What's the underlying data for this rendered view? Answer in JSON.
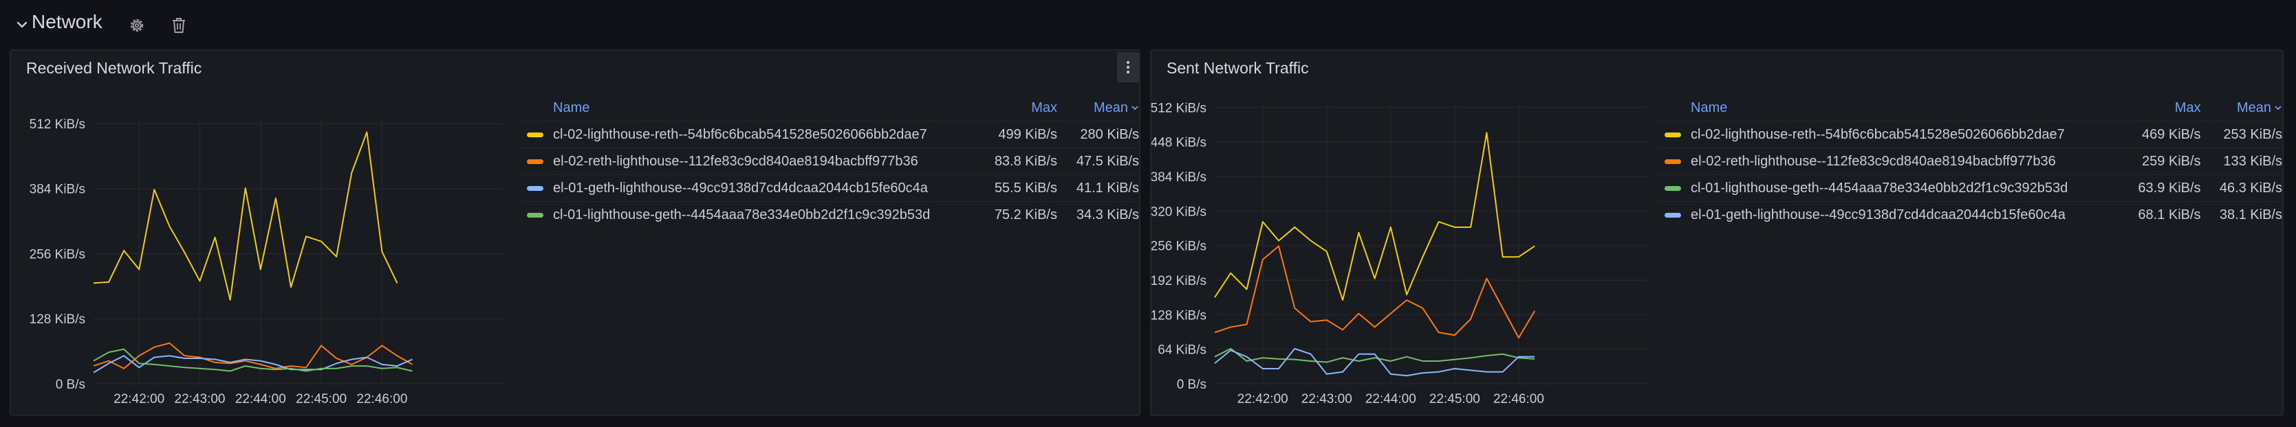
{
  "row": {
    "title": "Network"
  },
  "colors": {
    "yellow": "#f2cc0c",
    "orange": "#ff780a",
    "blue": "#8ab8ff",
    "green": "#73bf69",
    "grid": "#24262c",
    "axis_text": "#ccccdc"
  },
  "panels": [
    {
      "title": "Received Network Traffic",
      "legend": {
        "headers": {
          "name": "Name",
          "max": "Max",
          "mean": "Mean"
        },
        "rows": [
          {
            "name": "cl-02-lighthouse-reth--54bf6c6bcab541528e5026066bb2dae7",
            "max": "499 KiB/s",
            "mean": "280 KiB/s",
            "color": "#f2cc0c"
          },
          {
            "name": "el-02-reth-lighthouse--112fe83c9cd840ae8194bacbff977b36",
            "max": "83.8 KiB/s",
            "mean": "47.5 KiB/s",
            "color": "#ff780a"
          },
          {
            "name": "el-01-geth-lighthouse--49cc9138d7cd4dcaa2044cb15fe60c4a",
            "max": "55.5 KiB/s",
            "mean": "41.1 KiB/s",
            "color": "#8ab8ff"
          },
          {
            "name": "cl-01-lighthouse-geth--4454aaa78e334e0bb2d2f1c9c392b53d",
            "max": "75.2 KiB/s",
            "mean": "34.3 KiB/s",
            "color": "#73bf69"
          }
        ]
      },
      "chart_data": {
        "type": "line",
        "title": "Received Network Traffic",
        "xlabel": "",
        "ylabel": "",
        "x_ticks": [
          "22:42:00",
          "22:43:00",
          "22:44:00",
          "22:45:00",
          "22:46:00"
        ],
        "y_ticks": [
          "0 B/s",
          "128 KiB/s",
          "256 KiB/s",
          "384 KiB/s",
          "512 KiB/s"
        ],
        "y_tick_values": [
          0,
          128,
          256,
          384,
          512
        ],
        "ylim": [
          0,
          520
        ],
        "x": [
          0,
          15,
          30,
          45,
          60,
          75,
          90,
          105,
          120,
          135,
          150,
          165,
          180,
          195,
          210,
          225,
          240,
          255,
          270,
          285,
          300,
          315,
          330,
          345,
          360,
          375,
          390,
          405
        ],
        "xlim": [
          0,
          405
        ],
        "x_tick_values": [
          45,
          105,
          165,
          225,
          285
        ],
        "series": [
          {
            "name": "cl-02-lighthouse-reth--54bf6c6bcab541528e5026066bb2dae7",
            "color": "#f2cc0c",
            "values": [
              198,
              200,
              262,
              225,
              382,
              310,
              258,
              202,
              288,
              165,
              385,
              225,
              365,
              190,
              290,
              280,
              250,
              415,
              495,
              260,
              198,
              0,
              0,
              0,
              0,
              0,
              0,
              0
            ]
          },
          {
            "name": "el-02-reth-lighthouse--112fe83c9cd840ae8194bacbff977b36",
            "color": "#ff780a",
            "values": [
              35,
              45,
              30,
              55,
              72,
              80,
              55,
              52,
              42,
              40,
              45,
              38,
              30,
              35,
              32,
              75,
              50,
              38,
              52,
              75,
              55,
              38,
              0,
              0,
              0,
              0,
              0,
              0
            ]
          },
          {
            "name": "el-01-geth-lighthouse--49cc9138d7cd4dcaa2044cb15fe60c4a",
            "color": "#8ab8ff",
            "values": [
              22,
              40,
              55,
              32,
              52,
              55,
              50,
              50,
              48,
              42,
              48,
              45,
              38,
              28,
              28,
              28,
              40,
              48,
              52,
              38,
              35,
              48,
              0,
              0,
              0,
              0,
              0,
              0
            ]
          },
          {
            "name": "cl-01-lighthouse-geth--4454aaa78e334e0bb2d2f1c9c392b53d",
            "color": "#73bf69",
            "values": [
              45,
              62,
              68,
              40,
              38,
              35,
              32,
              30,
              28,
              25,
              35,
              30,
              28,
              30,
              25,
              30,
              30,
              35,
              35,
              30,
              32,
              25,
              0,
              0,
              0,
              0,
              0,
              0
            ]
          }
        ],
        "legend": "right",
        "grid": true
      }
    },
    {
      "title": "Sent Network Traffic",
      "legend": {
        "headers": {
          "name": "Name",
          "max": "Max",
          "mean": "Mean"
        },
        "rows": [
          {
            "name": "cl-02-lighthouse-reth--54bf6c6bcab541528e5026066bb2dae7",
            "max": "469 KiB/s",
            "mean": "253 KiB/s",
            "color": "#f2cc0c"
          },
          {
            "name": "el-02-reth-lighthouse--112fe83c9cd840ae8194bacbff977b36",
            "max": "259 KiB/s",
            "mean": "133 KiB/s",
            "color": "#ff780a"
          },
          {
            "name": "cl-01-lighthouse-geth--4454aaa78e334e0bb2d2f1c9c392b53d",
            "max": "63.9 KiB/s",
            "mean": "46.3 KiB/s",
            "color": "#73bf69"
          },
          {
            "name": "el-01-geth-lighthouse--49cc9138d7cd4dcaa2044cb15fe60c4a",
            "max": "68.1 KiB/s",
            "mean": "38.1 KiB/s",
            "color": "#8ab8ff"
          }
        ]
      },
      "chart_data": {
        "type": "line",
        "title": "Sent Network Traffic",
        "xlabel": "",
        "ylabel": "",
        "x_ticks": [
          "22:42:00",
          "22:43:00",
          "22:44:00",
          "22:45:00",
          "22:46:00"
        ],
        "y_ticks": [
          "0 B/s",
          "64 KiB/s",
          "128 KiB/s",
          "192 KiB/s",
          "256 KiB/s",
          "320 KiB/s",
          "384 KiB/s",
          "448 KiB/s",
          "512 KiB/s"
        ],
        "y_tick_values": [
          0,
          64,
          128,
          192,
          256,
          320,
          384,
          448,
          512
        ],
        "ylim": [
          0,
          515
        ],
        "x": [
          0,
          15,
          30,
          45,
          60,
          75,
          90,
          105,
          120,
          135,
          150,
          165,
          180,
          195,
          210,
          225,
          240,
          255,
          270,
          285,
          300,
          315,
          330,
          345,
          360,
          375,
          390,
          405
        ],
        "xlim": [
          0,
          405
        ],
        "x_tick_values": [
          45,
          105,
          165,
          225,
          285
        ],
        "series": [
          {
            "name": "cl-02-lighthouse-reth--54bf6c6bcab541528e5026066bb2dae7",
            "color": "#f2cc0c",
            "values": [
              160,
              205,
              175,
              300,
              265,
              290,
              265,
              245,
              155,
              280,
              195,
              290,
              165,
              235,
              300,
              290,
              290,
              465,
              235,
              235,
              255,
              0,
              0,
              0,
              0,
              0,
              0,
              0
            ]
          },
          {
            "name": "el-02-reth-lighthouse--112fe83c9cd840ae8194bacbff977b36",
            "color": "#ff780a",
            "values": [
              95,
              105,
              110,
              230,
              255,
              140,
              115,
              118,
              100,
              130,
              105,
              130,
              155,
              140,
              95,
              90,
              120,
              195,
              140,
              85,
              135,
              0,
              0,
              0,
              0,
              0,
              0,
              0
            ]
          },
          {
            "name": "cl-01-lighthouse-geth--4454aaa78e334e0bb2d2f1c9c392b53d",
            "color": "#73bf69",
            "values": [
              50,
              65,
              42,
              48,
              46,
              45,
              42,
              40,
              48,
              42,
              48,
              42,
              50,
              42,
              42,
              45,
              48,
              52,
              55,
              48,
              46,
              0,
              0,
              0,
              0,
              0,
              0,
              0
            ]
          },
          {
            "name": "el-01-geth-lighthouse--49cc9138d7cd4dcaa2044cb15fe60c4a",
            "color": "#8ab8ff",
            "values": [
              38,
              62,
              50,
              28,
              28,
              65,
              55,
              18,
              22,
              55,
              55,
              18,
              15,
              20,
              22,
              28,
              25,
              22,
              22,
              50,
              50,
              0,
              0,
              0,
              0,
              0,
              0,
              0
            ]
          }
        ],
        "legend": "right",
        "grid": true
      }
    }
  ]
}
